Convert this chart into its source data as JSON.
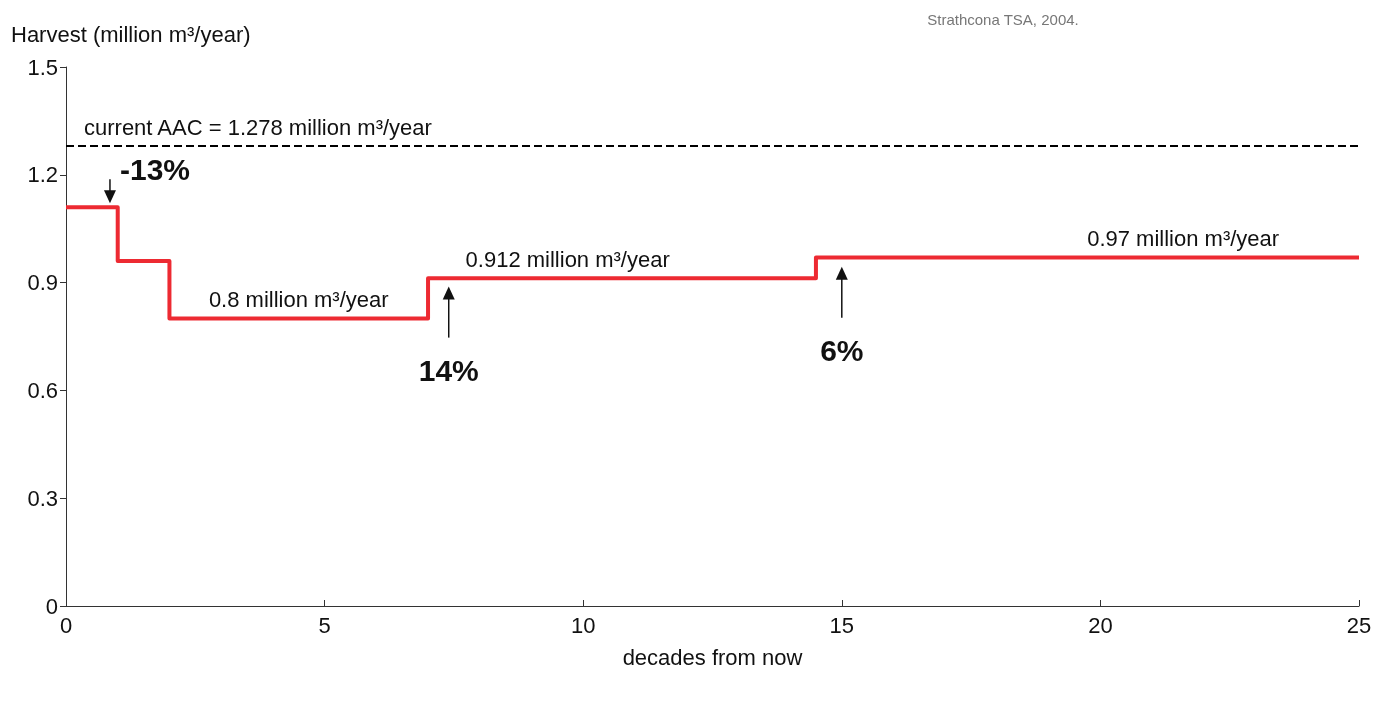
{
  "chart_data": {
    "type": "step",
    "xlabel": "decades from now",
    "ylabel": "Harvest (million m³/year)",
    "x": [
      0,
      1,
      2,
      7,
      14.5,
      25
    ],
    "series": [
      {
        "color": "#ed2a32",
        "values": [
          1.11,
          0.96,
          0.8,
          0.912,
          0.97,
          0.97
        ]
      }
    ],
    "xlim": [
      0,
      25
    ],
    "xticks": [
      0,
      5,
      10,
      15,
      20,
      25
    ],
    "ylim": [
      0,
      1.5
    ],
    "yticks": [
      0,
      0.3,
      0.6,
      0.9,
      1.2,
      1.5
    ],
    "grid": false,
    "marker": "none",
    "line_style": "solid",
    "ref_lines": [
      {
        "axis": "y",
        "value": 1.278,
        "label": "current AAC = 1.278 million m³/year",
        "color": "#000000",
        "line_style": "dashed"
      }
    ],
    "annotations": [
      {
        "text": "-13%",
        "x": 0.85,
        "y": 1.11
      },
      {
        "text": "14%",
        "x": 7.4,
        "y": 0.9
      },
      {
        "text": "6%",
        "x": 15,
        "y": 0.955
      },
      {
        "text": "0.8 million m³/year",
        "x": 4.5,
        "y": 0.8
      },
      {
        "text": "0.912 million m³/year",
        "x": 9.7,
        "y": 0.912
      },
      {
        "text": "0.97 million m³/year",
        "x": 21.6,
        "y": 0.97
      },
      "Strathcona TSA, 2004."
    ]
  }
}
